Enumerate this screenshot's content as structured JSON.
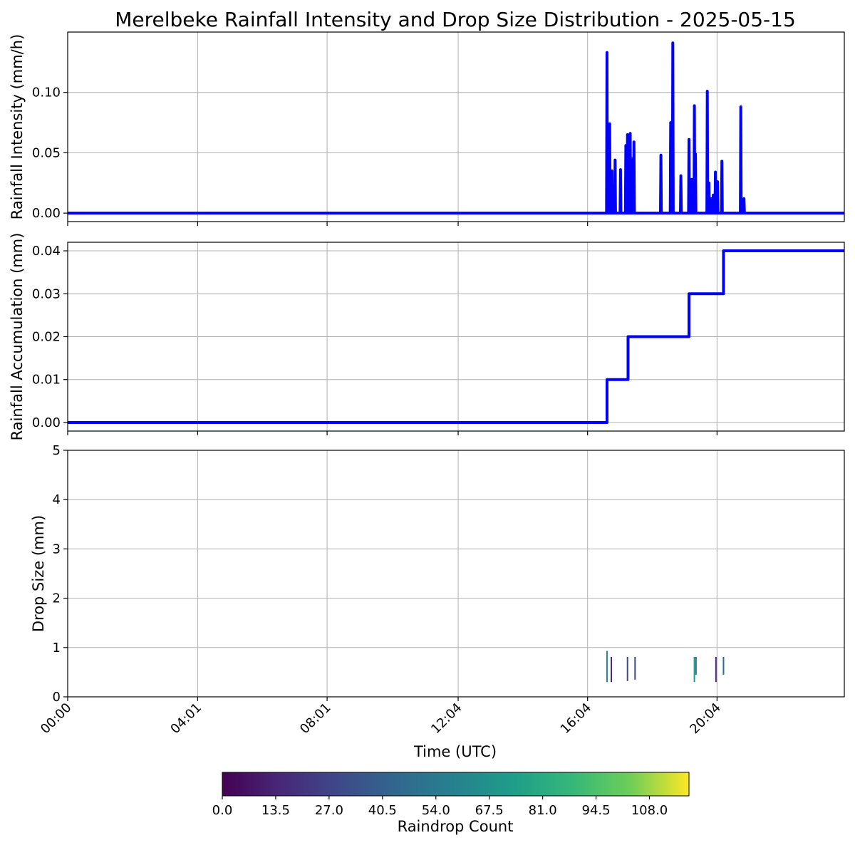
{
  "chart_data": {
    "title": "Merelbeke Rainfall Intensity and Drop Size Distribution - 2025-05-15",
    "x_axis": {
      "label": "Time (UTC)",
      "range_minutes": [
        0,
        1440
      ],
      "ticks": [
        {
          "minute": 0,
          "label": "00:00"
        },
        {
          "minute": 241,
          "label": "04:01"
        },
        {
          "minute": 481,
          "label": "08:01"
        },
        {
          "minute": 724,
          "label": "12:04"
        },
        {
          "minute": 964,
          "label": "16:04"
        },
        {
          "minute": 1204,
          "label": "20:04"
        }
      ]
    },
    "panels": [
      {
        "type": "line",
        "ylabel": "Rainfall Intensity (mm/h)",
        "ylim": [
          -0.007,
          0.15
        ],
        "yticks": [
          {
            "v": 0.0,
            "label": "0.00"
          },
          {
            "v": 0.05,
            "label": "0.05"
          },
          {
            "v": 0.1,
            "label": "0.10"
          }
        ],
        "grid": true,
        "spikes": [
          {
            "t": 1000,
            "v": 0.133
          },
          {
            "t": 1005,
            "v": 0.074
          },
          {
            "t": 1009,
            "v": 0.035
          },
          {
            "t": 1015,
            "v": 0.044
          },
          {
            "t": 1025,
            "v": 0.036
          },
          {
            "t": 1035,
            "v": 0.056
          },
          {
            "t": 1038,
            "v": 0.065
          },
          {
            "t": 1040,
            "v": 0.058
          },
          {
            "t": 1043,
            "v": 0.066
          },
          {
            "t": 1047,
            "v": 0.045
          },
          {
            "t": 1050,
            "v": 0.059
          },
          {
            "t": 1100,
            "v": 0.048
          },
          {
            "t": 1118,
            "v": 0.075
          },
          {
            "t": 1122,
            "v": 0.141
          },
          {
            "t": 1137,
            "v": 0.031
          },
          {
            "t": 1152,
            "v": 0.061
          },
          {
            "t": 1157,
            "v": 0.028
          },
          {
            "t": 1162,
            "v": 0.089
          },
          {
            "t": 1164,
            "v": 0.049
          },
          {
            "t": 1186,
            "v": 0.101
          },
          {
            "t": 1189,
            "v": 0.025
          },
          {
            "t": 1193,
            "v": 0.012
          },
          {
            "t": 1197,
            "v": 0.015
          },
          {
            "t": 1201,
            "v": 0.034
          },
          {
            "t": 1205,
            "v": 0.026
          },
          {
            "t": 1213,
            "v": 0.043
          },
          {
            "t": 1248,
            "v": 0.088
          },
          {
            "t": 1254,
            "v": 0.012
          }
        ]
      },
      {
        "type": "step",
        "ylabel": "Rainfall Accumulation (mm)",
        "ylim": [
          -0.002,
          0.042
        ],
        "yticks": [
          {
            "v": 0.0,
            "label": "0.00"
          },
          {
            "v": 0.01,
            "label": "0.01"
          },
          {
            "v": 0.02,
            "label": "0.02"
          },
          {
            "v": 0.03,
            "label": "0.03"
          },
          {
            "v": 0.04,
            "label": "0.04"
          }
        ],
        "grid": true,
        "steps": [
          {
            "t": 0,
            "v": 0.0
          },
          {
            "t": 1000,
            "v": 0.01
          },
          {
            "t": 1039,
            "v": 0.02
          },
          {
            "t": 1152,
            "v": 0.03
          },
          {
            "t": 1216,
            "v": 0.04
          }
        ]
      },
      {
        "type": "heatmap",
        "ylabel": "Drop Size (mm)",
        "ylim": [
          0,
          5
        ],
        "yticks": [
          {
            "v": 0,
            "label": "0"
          },
          {
            "v": 1,
            "label": "1"
          },
          {
            "v": 2,
            "label": "2"
          },
          {
            "v": 3,
            "label": "3"
          },
          {
            "v": 4,
            "label": "4"
          },
          {
            "v": 5,
            "label": "5"
          }
        ],
        "grid": true,
        "events": [
          {
            "t": 1000,
            "d0": 0.3,
            "d1": 0.93,
            "count": 60
          },
          {
            "t": 1008,
            "d0": 0.3,
            "d1": 0.81,
            "count": 20
          },
          {
            "t": 1038,
            "d0": 0.32,
            "d1": 0.81,
            "count": 30
          },
          {
            "t": 1052,
            "d0": 0.35,
            "d1": 0.81,
            "count": 25
          },
          {
            "t": 1162,
            "d0": 0.3,
            "d1": 0.81,
            "count": 70
          },
          {
            "t": 1165,
            "d0": 0.45,
            "d1": 0.81,
            "count": 40
          },
          {
            "t": 1202,
            "d0": 0.3,
            "d1": 0.81,
            "count": 15
          },
          {
            "t": 1216,
            "d0": 0.45,
            "d1": 0.81,
            "count": 50
          }
        ]
      }
    ],
    "colorbar": {
      "label": "Raindrop Count",
      "colormap": "viridis",
      "range": [
        0,
        118
      ],
      "ticks": [
        {
          "v": 0,
          "label": "0.0"
        },
        {
          "v": 13.5,
          "label": "13.5"
        },
        {
          "v": 27,
          "label": "27.0"
        },
        {
          "v": 40.5,
          "label": "40.5"
        },
        {
          "v": 54,
          "label": "54.0"
        },
        {
          "v": 67.5,
          "label": "67.5"
        },
        {
          "v": 81,
          "label": "81.0"
        },
        {
          "v": 94.5,
          "label": "94.5"
        },
        {
          "v": 108,
          "label": "108.0"
        }
      ]
    },
    "colors": {
      "line": "#0000ff",
      "grid": "#b0b0b0"
    }
  }
}
